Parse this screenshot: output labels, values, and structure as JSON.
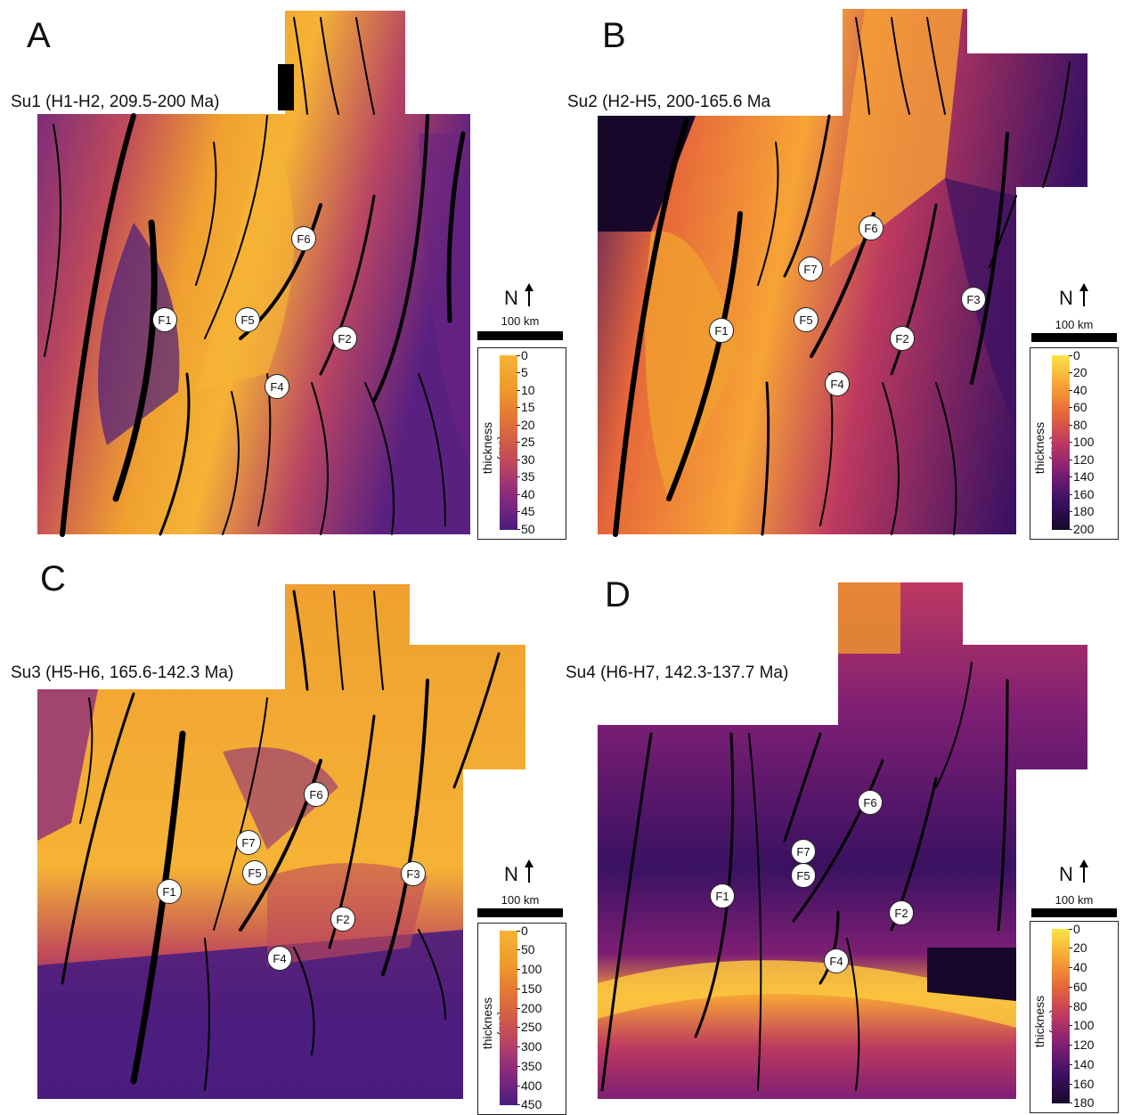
{
  "panels": [
    {
      "letter": "A",
      "unit_label": "Su1 (H1-H2, 209.5-200 Ma)",
      "faults": [
        "F1",
        "F5",
        "F4",
        "F2",
        "F6"
      ],
      "north_label": "N",
      "scale_label": "100 km",
      "legend": {
        "title": "thickness (ms)",
        "ticks": [
          "0",
          "5",
          "10",
          "15",
          "20",
          "25",
          "30",
          "35",
          "40",
          "45",
          "50"
        ],
        "colormap": [
          "#f5b335",
          "#f0992a",
          "#de6e3a",
          "#c04a5a",
          "#8c2b7d",
          "#4a1d7e"
        ]
      }
    },
    {
      "letter": "B",
      "unit_label": "Su2 (H2-H5, 200-165.6 Ma",
      "faults": [
        "F1",
        "F7",
        "F5",
        "F4",
        "F2",
        "F6",
        "F3"
      ],
      "north_label": "N",
      "scale_label": "100 km",
      "legend": {
        "title": "thickness (ms)",
        "ticks": [
          "0",
          "20",
          "40",
          "60",
          "80",
          "100",
          "120",
          "140",
          "160",
          "180",
          "200"
        ],
        "colormap": [
          "#fbe447",
          "#f7a435",
          "#e6663a",
          "#bd3960",
          "#7e1f74",
          "#3a1162",
          "#17082b"
        ]
      }
    },
    {
      "letter": "C",
      "unit_label": "Su3 (H5-H6, 165.6-142.3 Ma)",
      "faults": [
        "F1",
        "F7",
        "F5",
        "F4",
        "F2",
        "F6",
        "F3"
      ],
      "north_label": "N",
      "scale_label": "100 km",
      "legend": {
        "title": "thickness (ms)",
        "ticks": [
          "0",
          "50",
          "100",
          "150",
          "200",
          "250",
          "300",
          "350",
          "400",
          "450"
        ],
        "colormap": [
          "#f5b335",
          "#f0992a",
          "#de6e3a",
          "#c04a5a",
          "#8c2b7d",
          "#4a1d7e"
        ]
      }
    },
    {
      "letter": "D",
      "unit_label": "Su4 (H6-H7, 142.3-137.7 Ma)",
      "faults": [
        "F1",
        "F7",
        "F5",
        "F4",
        "F2",
        "F6"
      ],
      "north_label": "N",
      "scale_label": "100 km",
      "legend": {
        "title": "thickness (ms)",
        "ticks": [
          "0",
          "20",
          "40",
          "60",
          "80",
          "100",
          "120",
          "140",
          "160",
          "180"
        ],
        "colormap": [
          "#fbe447",
          "#f7a435",
          "#e6663a",
          "#bd3960",
          "#7e1f74",
          "#3a1162",
          "#17082b"
        ]
      }
    }
  ]
}
